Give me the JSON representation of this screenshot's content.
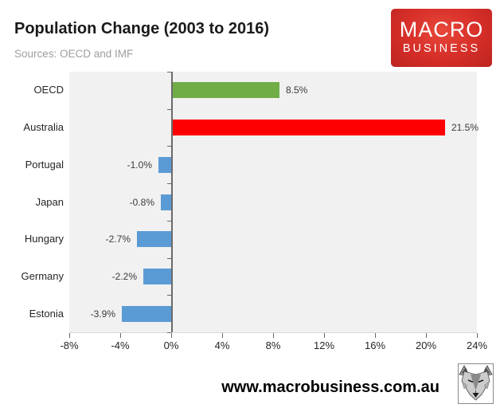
{
  "header": {
    "title": "Population Change (2003 to 2016)",
    "subtitle": "Sources: OECD and IMF",
    "logo": {
      "line1": "MACRO",
      "line2": "BUSINESS",
      "bg_color": "#d52e28",
      "text_color": "#ffffff"
    }
  },
  "chart_data": {
    "type": "bar",
    "orientation": "horizontal",
    "title": "Population Change (2003 to 2016)",
    "subtitle": "Sources: OECD and IMF",
    "categories": [
      "OECD",
      "Australia",
      "Portugal",
      "Japan",
      "Hungary",
      "Germany",
      "Estonia"
    ],
    "values": [
      8.5,
      21.5,
      -1.0,
      -0.8,
      -2.7,
      -2.2,
      -3.9
    ],
    "value_labels": [
      "8.5%",
      "21.5%",
      "-1.0%",
      "-0.8%",
      "-2.7%",
      "-2.2%",
      "-3.9%"
    ],
    "bar_colors": [
      "#70AD47",
      "#FF0000",
      "#5B9BD5",
      "#5B9BD5",
      "#5B9BD5",
      "#5B9BD5",
      "#5B9BD5"
    ],
    "xlabel": "",
    "ylabel": "",
    "xlim": [
      -8,
      24
    ],
    "x_tick_values": [
      -8,
      -4,
      0,
      4,
      8,
      12,
      16,
      20,
      24
    ],
    "x_tick_labels": [
      "-8%",
      "-4%",
      "0%",
      "4%",
      "8%",
      "12%",
      "16%",
      "20%",
      "24%"
    ],
    "grid": false,
    "legend": "none",
    "plot_bg": "#f1f1f1",
    "axis_color": "#6a6a6a"
  },
  "footer": {
    "url": "www.macrobusiness.com.au",
    "logo_icon": "wolf-logo"
  }
}
